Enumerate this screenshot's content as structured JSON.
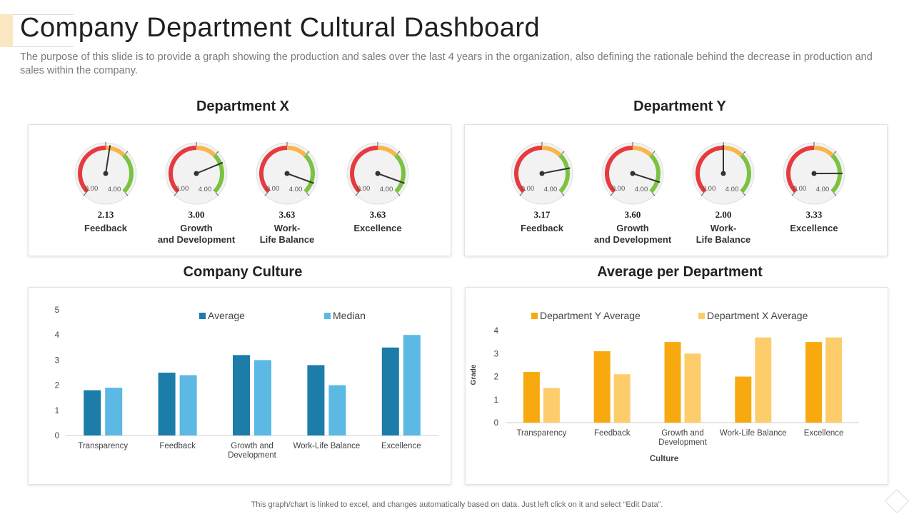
{
  "header": {
    "title": "Company Department Cultural Dashboard",
    "subtitle": "The purpose of this slide is to provide a graph showing the production and sales over the last 4 years in the organization, also defining the rationale behind the decrease in production and sales within the company."
  },
  "sections": {
    "dept_x": "Department X",
    "dept_y": "Department Y",
    "company_culture": "Company Culture",
    "avg_per_dept": "Average per Department"
  },
  "gauge_scale": {
    "min_label": "0.00",
    "max_label": "4.00",
    "min": 0,
    "max": 4
  },
  "dept_x_gauges": [
    {
      "value": 2.13,
      "value_label": "2.13",
      "label": "Feedback"
    },
    {
      "value": 3.0,
      "value_label": "3.00",
      "label": "Growth\nand Development"
    },
    {
      "value": 3.63,
      "value_label": "3.63",
      "label": "Work-\nLife Balance"
    },
    {
      "value": 3.63,
      "value_label": "3.63",
      "label": "Excellence"
    }
  ],
  "dept_y_gauges": [
    {
      "value": 3.17,
      "value_label": "3.17",
      "label": "Feedback"
    },
    {
      "value": 3.6,
      "value_label": "3.60",
      "label": "Growth\nand Development"
    },
    {
      "value": 2.0,
      "value_label": "2.00",
      "label": "Work-\nLife Balance"
    },
    {
      "value": 3.33,
      "value_label": "3.33",
      "label": "Excellence"
    }
  ],
  "colors": {
    "red": "#e63a3f",
    "orange": "#f7b64a",
    "green": "#7cc242",
    "dial": "#f2f2f2",
    "needle": "#333333",
    "avg": "#1b7da8",
    "median": "#5bb9e3",
    "dept_y": "#f8a90f",
    "dept_x": "#fdcd6b"
  },
  "chart_data": [
    {
      "type": "bar",
      "title": "Company Culture",
      "categories": [
        "Transparency",
        "Feedback",
        "Growth and\nDevelopment",
        "Work-Life Balance",
        "Excellence"
      ],
      "series": [
        {
          "name": "Average",
          "values": [
            1.8,
            2.5,
            3.2,
            2.8,
            3.5
          ]
        },
        {
          "name": "Median",
          "values": [
            1.9,
            2.4,
            3.0,
            2.0,
            4.0
          ]
        }
      ],
      "ylim": [
        0,
        5
      ],
      "yticks": [
        0,
        1,
        2,
        3,
        4,
        5
      ],
      "legend": "top",
      "grid": false
    },
    {
      "type": "bar",
      "title": "Average per Department",
      "categories": [
        "Transparency",
        "Feedback",
        "Growth and\nDevelopment",
        "Work-Life Balance",
        "Excellence"
      ],
      "series": [
        {
          "name": "Department Y Average",
          "values": [
            2.2,
            3.1,
            3.5,
            2.0,
            3.5
          ]
        },
        {
          "name": "Department X Average",
          "values": [
            1.5,
            2.1,
            3.0,
            3.7,
            3.7
          ]
        }
      ],
      "ylim": [
        0,
        4
      ],
      "yticks": [
        0,
        1,
        2,
        3,
        4
      ],
      "xlabel": "Culture",
      "ylabel": "Grade",
      "legend": "top",
      "grid": false
    }
  ],
  "footer": "This graph/chart is linked to excel,  and changes automatically based on data. Just left click on it and select “Edit Data”."
}
